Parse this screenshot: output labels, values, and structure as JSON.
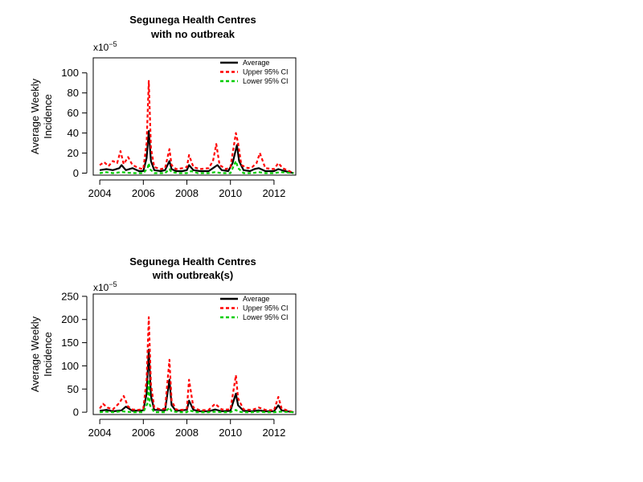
{
  "chart_data": [
    {
      "type": "line",
      "title_line1": "Segunega Health Centres",
      "title_line2": "with no outbreak",
      "ylabel_line1": "Average Weekly",
      "ylabel_line2": "Incidence",
      "scale_base": "x10",
      "scale_exp": "−5",
      "xlim": [
        2003.7,
        2013.0
      ],
      "ylim": [
        -2,
        115
      ],
      "xticks": [
        2004,
        2006,
        2008,
        2010,
        2012
      ],
      "yticks": [
        0,
        20,
        40,
        60,
        80,
        100
      ],
      "legend_position": "top-right",
      "legend": [
        "Average",
        "Upper 95% CI",
        "Lower 95% CI"
      ],
      "colors": {
        "average": "#000000",
        "upper": "#ff0000",
        "lower": "#00cc00"
      },
      "series": [
        {
          "name": "Average",
          "x": [
            2004.0,
            2004.3,
            2004.6,
            2004.9,
            2005.0,
            2005.2,
            2005.5,
            2005.8,
            2006.0,
            2006.15,
            2006.25,
            2006.35,
            2006.5,
            2006.8,
            2007.0,
            2007.2,
            2007.3,
            2007.5,
            2007.8,
            2008.0,
            2008.1,
            2008.3,
            2008.6,
            2009.0,
            2009.2,
            2009.4,
            2009.6,
            2009.9,
            2010.1,
            2010.3,
            2010.4,
            2010.6,
            2010.9,
            2011.1,
            2011.3,
            2011.6,
            2012.0,
            2012.2,
            2012.5,
            2012.9
          ],
          "y": [
            3,
            4,
            3,
            5,
            8,
            3,
            5,
            2,
            2,
            15,
            42,
            12,
            3,
            2,
            3,
            12,
            4,
            2,
            2,
            3,
            8,
            3,
            2,
            2,
            5,
            8,
            3,
            2,
            10,
            28,
            12,
            3,
            2,
            4,
            5,
            2,
            2,
            4,
            2,
            0
          ]
        },
        {
          "name": "Upper 95% CI",
          "x": [
            2004.0,
            2004.2,
            2004.4,
            2004.6,
            2004.8,
            2004.95,
            2005.1,
            2005.3,
            2005.5,
            2005.8,
            2006.0,
            2006.15,
            2006.25,
            2006.35,
            2006.5,
            2006.8,
            2007.0,
            2007.2,
            2007.3,
            2007.5,
            2007.8,
            2008.0,
            2008.1,
            2008.3,
            2008.6,
            2009.0,
            2009.2,
            2009.35,
            2009.5,
            2009.8,
            2010.0,
            2010.25,
            2010.35,
            2010.5,
            2010.8,
            2011.0,
            2011.2,
            2011.35,
            2011.6,
            2012.0,
            2012.2,
            2012.4,
            2012.7,
            2012.9
          ],
          "y": [
            8,
            11,
            7,
            12,
            10,
            22,
            9,
            16,
            8,
            5,
            4,
            30,
            92,
            25,
            6,
            4,
            5,
            24,
            8,
            4,
            5,
            6,
            18,
            6,
            4,
            5,
            12,
            29,
            8,
            4,
            6,
            40,
            30,
            8,
            5,
            6,
            10,
            20,
            5,
            4,
            10,
            5,
            2,
            0
          ]
        },
        {
          "name": "Lower 95% CI",
          "x": [
            2004.0,
            2004.3,
            2004.6,
            2005.0,
            2005.5,
            2006.0,
            2006.2,
            2006.25,
            2006.3,
            2006.5,
            2007.0,
            2007.2,
            2007.3,
            2007.6,
            2008.0,
            2008.2,
            2008.5,
            2009.0,
            2009.3,
            2009.6,
            2010.0,
            2010.25,
            2010.35,
            2010.6,
            2011.0,
            2011.3,
            2011.6,
            2012.0,
            2012.3,
            2012.9
          ],
          "y": [
            0,
            1,
            0,
            1,
            0,
            0,
            5,
            10,
            4,
            0,
            0,
            4,
            1,
            0,
            0,
            2,
            0,
            0,
            1,
            0,
            0,
            12,
            5,
            0,
            0,
            1,
            0,
            0,
            1,
            0
          ]
        }
      ]
    },
    {
      "type": "line",
      "title_line1": "Segunega Health Centres",
      "title_line2": "with outbreak(s)",
      "ylabel_line1": "Average Weekly",
      "ylabel_line2": "Incidence",
      "scale_base": "x10",
      "scale_exp": "−5",
      "xlim": [
        2003.7,
        2013.0
      ],
      "ylim": [
        -5,
        255
      ],
      "xticks": [
        2004,
        2006,
        2008,
        2010,
        2012
      ],
      "yticks": [
        0,
        50,
        100,
        150,
        200,
        250
      ],
      "legend_position": "top-right",
      "legend": [
        "Average",
        "Upper 95% CI",
        "Lower 95% CI"
      ],
      "colors": {
        "average": "#000000",
        "upper": "#ff0000",
        "lower": "#00cc00"
      },
      "series": [
        {
          "name": "Average",
          "x": [
            2004.0,
            2004.3,
            2004.6,
            2005.0,
            2005.2,
            2005.5,
            2006.0,
            2006.15,
            2006.25,
            2006.35,
            2006.5,
            2007.0,
            2007.2,
            2007.3,
            2007.5,
            2008.0,
            2008.1,
            2008.3,
            2008.6,
            2009.0,
            2009.3,
            2009.6,
            2010.0,
            2010.25,
            2010.35,
            2010.6,
            2011.0,
            2011.3,
            2011.6,
            2012.0,
            2012.2,
            2012.35,
            2012.6,
            2012.9
          ],
          "y": [
            3,
            5,
            2,
            4,
            12,
            3,
            4,
            40,
            135,
            35,
            5,
            4,
            70,
            15,
            3,
            5,
            25,
            5,
            2,
            2,
            6,
            2,
            3,
            40,
            15,
            3,
            2,
            4,
            2,
            2,
            15,
            4,
            2,
            0
          ]
        },
        {
          "name": "Upper 95% CI",
          "x": [
            2004.0,
            2004.15,
            2004.35,
            2004.6,
            2004.9,
            2005.1,
            2005.3,
            2005.5,
            2005.8,
            2006.0,
            2006.15,
            2006.25,
            2006.35,
            2006.5,
            2006.8,
            2007.0,
            2007.2,
            2007.3,
            2007.5,
            2007.8,
            2008.0,
            2008.1,
            2008.3,
            2008.6,
            2009.0,
            2009.3,
            2009.6,
            2010.0,
            2010.25,
            2010.35,
            2010.6,
            2011.0,
            2011.3,
            2011.6,
            2012.0,
            2012.2,
            2012.35,
            2012.6,
            2012.9
          ],
          "y": [
            8,
            18,
            10,
            6,
            20,
            35,
            12,
            6,
            5,
            8,
            70,
            205,
            60,
            10,
            6,
            8,
            113,
            25,
            6,
            5,
            8,
            70,
            10,
            4,
            5,
            18,
            6,
            6,
            80,
            30,
            6,
            5,
            10,
            5,
            4,
            33,
            8,
            4,
            0
          ]
        },
        {
          "name": "Lower 95% CI",
          "x": [
            2004.0,
            2004.3,
            2004.6,
            2005.0,
            2005.5,
            2006.0,
            2006.2,
            2006.25,
            2006.3,
            2006.5,
            2007.0,
            2007.2,
            2007.3,
            2007.6,
            2008.0,
            2008.1,
            2008.4,
            2009.0,
            2009.3,
            2009.6,
            2010.0,
            2010.25,
            2010.35,
            2010.6,
            2011.0,
            2011.3,
            2011.6,
            2012.0,
            2012.3,
            2012.9
          ],
          "y": [
            0,
            1,
            0,
            2,
            0,
            0,
            20,
            70,
            15,
            0,
            0,
            10,
            2,
            0,
            0,
            4,
            0,
            0,
            1,
            0,
            0,
            5,
            1,
            0,
            0,
            1,
            0,
            0,
            1,
            0
          ]
        }
      ]
    }
  ]
}
